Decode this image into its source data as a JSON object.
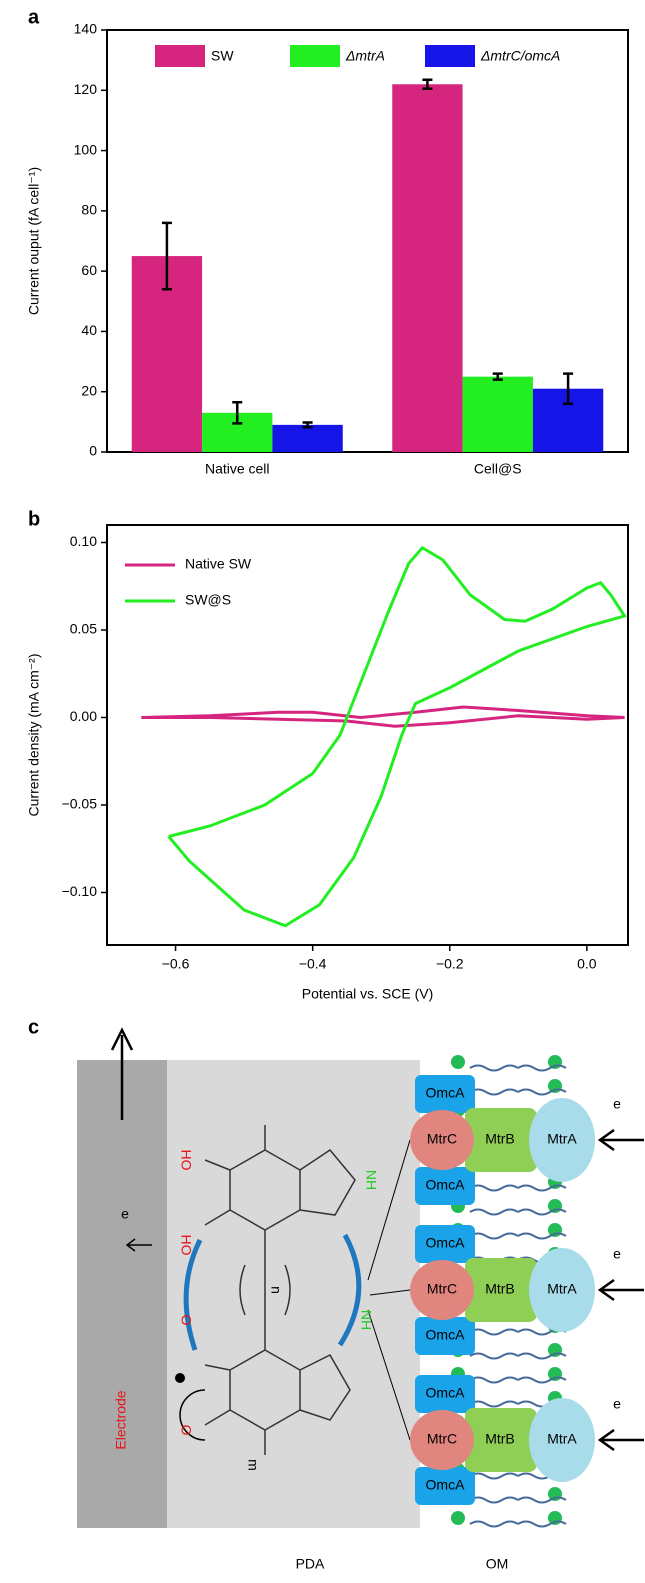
{
  "chart_data": [
    {
      "panel": "a",
      "type": "bar",
      "ylabel": "Current ouput (fA cell⁻¹)",
      "categories": [
        "Native cell",
        "Cell@S"
      ],
      "series": [
        {
          "name": "SW",
          "color": "#d6257f",
          "values": [
            65,
            122
          ],
          "errors": [
            11,
            1.5
          ]
        },
        {
          "name": "ΔmtrA",
          "color": "#22ee22",
          "values": [
            13,
            25
          ],
          "errors": [
            3.5,
            1
          ]
        },
        {
          "name": "ΔmtrC/omcA",
          "color": "#1515e8",
          "values": [
            9,
            21
          ],
          "errors": [
            0.8,
            5
          ]
        }
      ],
      "ylim": [
        0,
        140
      ],
      "yticks": [
        0,
        20,
        40,
        60,
        80,
        100,
        120,
        140
      ],
      "legend": "top"
    },
    {
      "panel": "b",
      "type": "line",
      "xlabel": "Potential vs. SCE (V)",
      "ylabel": "Current density (mA cm⁻²)",
      "series": [
        {
          "name": "Native SW",
          "color": "#d6257f",
          "x": [
            -0.65,
            -0.55,
            -0.45,
            -0.4,
            -0.33,
            -0.25,
            -0.18,
            -0.1,
            0,
            0.055,
            0,
            -0.1,
            -0.2,
            -0.28,
            -0.35,
            -0.45,
            -0.55,
            -0.65
          ],
          "values": [
            0,
            0.001,
            0.003,
            0.003,
            0,
            0.003,
            0.006,
            0.004,
            0.001,
            0,
            -0.001,
            0.001,
            -0.003,
            -0.005,
            -0.002,
            -0.001,
            0,
            0
          ]
        },
        {
          "name": "SW@S",
          "color": "#22ee22",
          "x": [
            -0.61,
            -0.55,
            -0.47,
            -0.4,
            -0.36,
            -0.33,
            -0.29,
            -0.26,
            -0.24,
            -0.21,
            -0.17,
            -0.12,
            -0.09,
            -0.05,
            0,
            0.02,
            0.035,
            0.055,
            0,
            -0.1,
            -0.2,
            -0.25,
            -0.27,
            -0.3,
            -0.34,
            -0.39,
            -0.44,
            -0.5,
            -0.58,
            -0.61
          ],
          "values": [
            -0.068,
            -0.062,
            -0.05,
            -0.032,
            -0.01,
            0.02,
            0.06,
            0.088,
            0.097,
            0.09,
            0.07,
            0.056,
            0.055,
            0.062,
            0.074,
            0.077,
            0.07,
            0.058,
            0.052,
            0.038,
            0.017,
            0.008,
            -0.01,
            -0.045,
            -0.08,
            -0.107,
            -0.119,
            -0.11,
            -0.082,
            -0.068
          ]
        }
      ],
      "xlim": [
        -0.7,
        0.06
      ],
      "xticks": [
        {
          "value": -0.6,
          "label": "−0.6"
        },
        {
          "value": -0.4,
          "label": "−0.4"
        },
        {
          "value": -0.2,
          "label": "−0.2"
        },
        {
          "value": 0,
          "label": "0.0"
        }
      ],
      "ylim": [
        -0.13,
        0.11
      ],
      "yticks": [
        {
          "value": -0.1,
          "label": "−0.10"
        },
        {
          "value": -0.05,
          "label": "−0.05"
        },
        {
          "value": 0,
          "label": "0.00"
        },
        {
          "value": 0.05,
          "label": "0.05"
        },
        {
          "value": 0.1,
          "label": "0.10"
        }
      ],
      "legend": "upper left"
    }
  ],
  "diagram": {
    "panel": "c",
    "electrode": "Electrode",
    "pda": "PDA",
    "om": "OM",
    "electrons": [
      "e",
      "e",
      "e",
      "e"
    ],
    "complexes": [
      {
        "omca_top": "OmcA",
        "mtrc": "MtrC",
        "mtrb": "MtrB",
        "mtra": "MtrA",
        "omca_bottom": "OmcA"
      },
      {
        "omca_top": "OmcA",
        "mtrc": "MtrC",
        "mtrb": "MtrB",
        "mtra": "MtrA",
        "omca_bottom": "OmcA"
      },
      {
        "omca_top": "OmcA",
        "mtrc": "MtrC",
        "mtrb": "MtrB",
        "mtra": "MtrA",
        "omca_bottom": "OmcA"
      }
    ],
    "molecule": {
      "ho1": "HO",
      "ho2": "HO",
      "o1": "O",
      "o2": "O",
      "nh1": "NH",
      "nh2": "NH",
      "n": "n",
      "m": "m"
    }
  }
}
